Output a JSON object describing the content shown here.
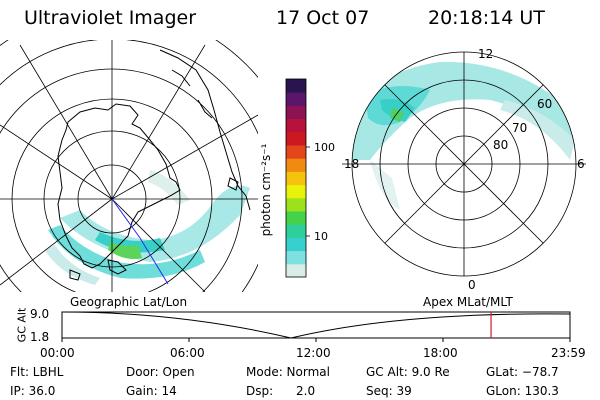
{
  "header": {
    "instrument": "Ultraviolet Imager",
    "date": "17 Oct 07",
    "time": "20:18:14 UT"
  },
  "colorbar": {
    "unit_label": "photon cm⁻²s⁻¹",
    "ticks": [
      "100",
      "10"
    ],
    "colors": [
      "#d8ece8",
      "#7fe0e0",
      "#37cfd0",
      "#2ecf9a",
      "#44d24a",
      "#9be21d",
      "#e9f20b",
      "#f5c30d",
      "#f08a10",
      "#e4461b",
      "#cc1821",
      "#b6123b",
      "#8c1253",
      "#5b1669",
      "#2a1450"
    ]
  },
  "maps": {
    "geographic_label": "Geographic Lat/Lon",
    "apex_label": "Apex  MLat/MLT",
    "mlt_labels": {
      "top": "12",
      "left": "18",
      "right": "6",
      "bottom": "0"
    },
    "lat_labels": [
      "60",
      "70",
      "80"
    ]
  },
  "altitude_plot": {
    "y_label": "GC Alt",
    "y_ticks": [
      "9.0",
      "1.8"
    ],
    "x_ticks": [
      "00:00",
      "06:00",
      "12:00",
      "18:00",
      "23:59"
    ],
    "current_time_fraction": 0.8446
  },
  "status": {
    "flt": "Flt: LBHL",
    "ip": "IP: 36.0",
    "door": "Door: Open",
    "gain": "Gain: 14",
    "mode": "Mode: Normal",
    "dsp": "Dsp:      2.0",
    "gc_alt": "GC Alt: 9.0 Re",
    "seq": "Seq: 39",
    "glat": "GLat: −78.7",
    "glon": "GLon: 130.3"
  }
}
